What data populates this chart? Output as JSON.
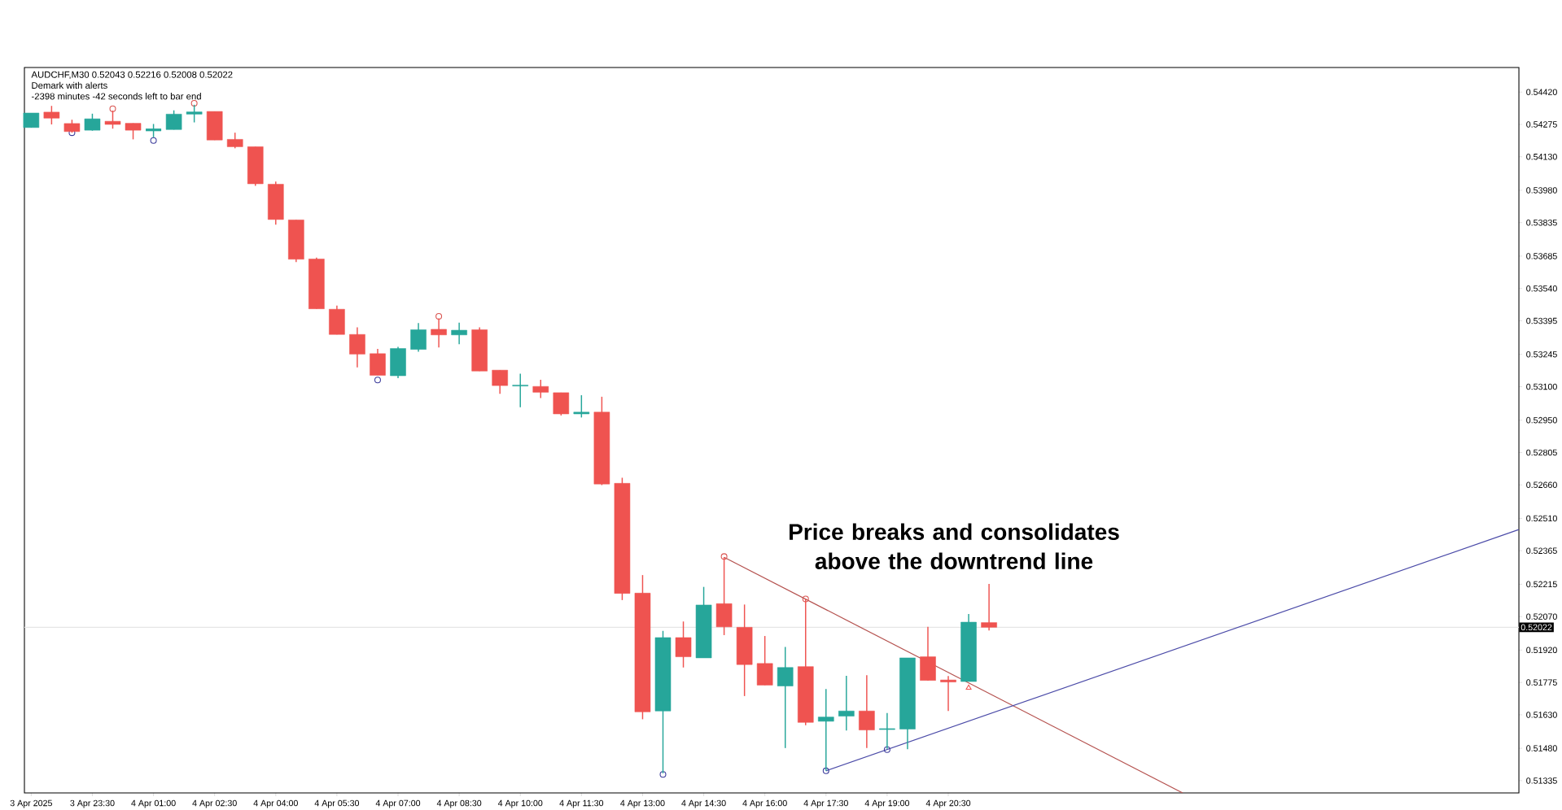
{
  "chart_data": {
    "type": "candlestick",
    "title": "AUDCHF,M30  0.52043 0.52216 0.52008 0.52022",
    "subtitle": "Demark with alerts",
    "annotations": [
      "-2398 minutes -42 seconds left to bar end",
      "Price breaks and consolidates above the downtrend line"
    ],
    "x": [
      "2025-04-03T22:00",
      "2025-04-03T22:30",
      "2025-04-03T23:00",
      "2025-04-03T23:30",
      "2025-04-04T00:00",
      "2025-04-04T00:30",
      "2025-04-04T01:00",
      "2025-04-04T01:30",
      "2025-04-04T02:00",
      "2025-04-04T02:30",
      "2025-04-04T03:00",
      "2025-04-04T03:30",
      "2025-04-04T04:00",
      "2025-04-04T04:30",
      "2025-04-04T05:00",
      "2025-04-04T05:30",
      "2025-04-04T06:00",
      "2025-04-04T06:30",
      "2025-04-04T07:00",
      "2025-04-04T07:30",
      "2025-04-04T08:00",
      "2025-04-04T08:30",
      "2025-04-04T09:00",
      "2025-04-04T09:30",
      "2025-04-04T10:00",
      "2025-04-04T10:30",
      "2025-04-04T11:00",
      "2025-04-04T11:30",
      "2025-04-04T12:00",
      "2025-04-04T12:30",
      "2025-04-04T13:00",
      "2025-04-04T13:30",
      "2025-04-04T14:00",
      "2025-04-04T14:30",
      "2025-04-04T15:00",
      "2025-04-04T15:30",
      "2025-04-04T16:00",
      "2025-04-04T16:30",
      "2025-04-04T17:00",
      "2025-04-04T17:30",
      "2025-04-04T18:00",
      "2025-04-04T18:30",
      "2025-04-04T19:00",
      "2025-04-04T19:30",
      "2025-04-04T20:00",
      "2025-04-04T20:30",
      "2025-04-04T21:00",
      "2025-04-04T21:30"
    ],
    "ohlc": [
      [
        0.54261,
        0.54326,
        0.54261,
        0.54326
      ],
      [
        0.5433,
        0.54358,
        0.54275,
        0.54303
      ],
      [
        0.54279,
        0.54296,
        0.54238,
        0.54243
      ],
      [
        0.54249,
        0.54323,
        0.54247,
        0.543
      ],
      [
        0.54289,
        0.54337,
        0.54256,
        0.54275
      ],
      [
        0.5428,
        0.5428,
        0.54208,
        0.54249
      ],
      [
        0.54249,
        0.54277,
        0.54217,
        0.54252
      ],
      [
        0.54252,
        0.54338,
        0.54252,
        0.54321
      ],
      [
        0.54321,
        0.54363,
        0.54284,
        0.54331
      ],
      [
        0.54333,
        0.54333,
        0.54205,
        0.54205
      ],
      [
        0.54208,
        0.54238,
        0.54168,
        0.54175
      ],
      [
        0.54175,
        0.54175,
        0.54,
        0.54009
      ],
      [
        0.54007,
        0.54019,
        0.53826,
        0.53849
      ],
      [
        0.53847,
        0.53847,
        0.53658,
        0.53671
      ],
      [
        0.53672,
        0.53678,
        0.53449,
        0.53449
      ],
      [
        0.53447,
        0.53463,
        0.53334,
        0.53334
      ],
      [
        0.53334,
        0.53366,
        0.53186,
        0.53246
      ],
      [
        0.53248,
        0.53269,
        0.53151,
        0.53151
      ],
      [
        0.53149,
        0.53278,
        0.53138,
        0.53271
      ],
      [
        0.53267,
        0.53385,
        0.53257,
        0.53355
      ],
      [
        0.53357,
        0.53406,
        0.53276,
        0.53332
      ],
      [
        0.53332,
        0.53387,
        0.5329,
        0.53353
      ],
      [
        0.53355,
        0.53366,
        0.5317,
        0.5317
      ],
      [
        0.53174,
        0.53174,
        0.53068,
        0.53105
      ],
      [
        0.53103,
        0.53158,
        0.53008,
        0.53107
      ],
      [
        0.53101,
        0.53131,
        0.53049,
        0.53075
      ],
      [
        0.53073,
        0.53073,
        0.52971,
        0.52978
      ],
      [
        0.52978,
        0.53062,
        0.52962,
        0.52986
      ],
      [
        0.52986,
        0.53055,
        0.52659,
        0.52664
      ],
      [
        0.52667,
        0.52692,
        0.52144,
        0.52174
      ],
      [
        0.52175,
        0.52256,
        0.5161,
        0.51643
      ],
      [
        0.51647,
        0.52006,
        0.51368,
        0.51976
      ],
      [
        0.51976,
        0.52048,
        0.51842,
        0.5189
      ],
      [
        0.51885,
        0.52203,
        0.51885,
        0.52122
      ],
      [
        0.52128,
        0.52336,
        0.51987,
        0.52024
      ],
      [
        0.52022,
        0.52124,
        0.51714,
        0.51855
      ],
      [
        0.5186,
        0.51983,
        0.51763,
        0.51763
      ],
      [
        0.51759,
        0.51934,
        0.51481,
        0.51842
      ],
      [
        0.51846,
        0.52149,
        0.51583,
        0.51596
      ],
      [
        0.51601,
        0.51745,
        0.51379,
        0.5162
      ],
      [
        0.51624,
        0.51805,
        0.5156,
        0.51647
      ],
      [
        0.51647,
        0.51807,
        0.51481,
        0.51562
      ],
      [
        0.51564,
        0.51638,
        0.51478,
        0.51568
      ],
      [
        0.51566,
        0.51885,
        0.51476,
        0.51885
      ],
      [
        0.5189,
        0.52024,
        0.51784,
        0.51784
      ],
      [
        0.51786,
        0.51804,
        0.51647,
        0.51777
      ],
      [
        0.51779,
        0.52082,
        0.51779,
        0.52045
      ],
      [
        0.52043,
        0.52216,
        0.52008,
        0.52022
      ]
    ],
    "colors": [
      "#26a69a",
      "#ef5350",
      "#ef5350",
      "#26a69a",
      "#ef5350",
      "#ef5350",
      "#26a69a",
      "#26a69a",
      "#26a69a",
      "#ef5350",
      "#ef5350",
      "#ef5350",
      "#ef5350",
      "#ef5350",
      "#ef5350",
      "#ef5350",
      "#ef5350",
      "#ef5350",
      "#26a69a",
      "#26a69a",
      "#ef5350",
      "#26a69a",
      "#ef5350",
      "#ef5350",
      "#26a69a",
      "#ef5350",
      "#ef5350",
      "#26a69a",
      "#ef5350",
      "#ef5350",
      "#ef5350",
      "#26a69a",
      "#ef5350",
      "#26a69a",
      "#ef5350",
      "#ef5350",
      "#ef5350",
      "#26a69a",
      "#ef5350",
      "#26a69a",
      "#26a69a",
      "#ef5350",
      "#26a69a",
      "#26a69a",
      "#ef5350",
      "#ef5350",
      "#26a69a",
      "#ef5350"
    ],
    "series": [
      {
        "type": "line",
        "color": "#b5524f",
        "marker": "none",
        "x": [
          "2025-04-04T15:00",
          "2025-04-05T02:15"
        ],
        "values": [
          0.52336,
          0.5128
        ]
      },
      {
        "type": "line",
        "color": "#4b4ba8",
        "marker": "none",
        "x": [
          "2025-04-04T17:30",
          "2025-04-05T10:30"
        ],
        "values": [
          0.51379,
          0.5246
        ]
      },
      {
        "type": "scatter",
        "color": "#d9534f",
        "marker": "circle",
        "x": [
          "2025-04-04T00:00",
          "2025-04-04T02:00",
          "2025-04-04T08:00",
          "2025-04-04T15:00",
          "2025-04-04T17:00"
        ],
        "values": [
          0.54345,
          0.5437,
          0.53415,
          0.52339,
          0.52149
        ]
      },
      {
        "type": "scatter",
        "color": "#3b3b9b",
        "marker": "circle",
        "x": [
          "2025-04-03T23:00",
          "2025-04-04T01:00",
          "2025-04-04T06:30",
          "2025-04-04T13:30",
          "2025-04-04T17:30",
          "2025-04-04T19:00"
        ],
        "values": [
          0.54238,
          0.54203,
          0.5313,
          0.51363,
          0.51379,
          0.51474
        ]
      },
      {
        "type": "scatter",
        "color": "#ef5350",
        "marker": "triangle",
        "x": [
          "2025-04-04T21:00"
        ],
        "values": [
          0.51751
        ]
      }
    ],
    "ref_lines": [
      {
        "axis": "y",
        "value": 0.52022,
        "label": "0.52022",
        "color": "#e6e6e6"
      }
    ],
    "xlim": [
      "2025-04-03T21:50",
      "2025-04-05T10:30"
    ],
    "ylim": [
      0.5128,
      0.5453
    ],
    "xticks": [
      {
        "value": "2025-04-03T22:00",
        "label": "3 Apr 2025"
      },
      {
        "value": "2025-04-03T23:30",
        "label": "3 Apr 23:30"
      },
      {
        "value": "2025-04-04T01:00",
        "label": "4 Apr 01:00"
      },
      {
        "value": "2025-04-04T02:30",
        "label": "4 Apr 02:30"
      },
      {
        "value": "2025-04-04T04:00",
        "label": "4 Apr 04:00"
      },
      {
        "value": "2025-04-04T05:30",
        "label": "4 Apr 05:30"
      },
      {
        "value": "2025-04-04T07:00",
        "label": "4 Apr 07:00"
      },
      {
        "value": "2025-04-04T08:30",
        "label": "4 Apr 08:30"
      },
      {
        "value": "2025-04-04T10:00",
        "label": "4 Apr 10:00"
      },
      {
        "value": "2025-04-04T11:30",
        "label": "4 Apr 11:30"
      },
      {
        "value": "2025-04-04T13:00",
        "label": "4 Apr 13:00"
      },
      {
        "value": "2025-04-04T14:30",
        "label": "4 Apr 14:30"
      },
      {
        "value": "2025-04-04T16:00",
        "label": "4 Apr 16:00"
      },
      {
        "value": "2025-04-04T17:30",
        "label": "4 Apr 17:30"
      },
      {
        "value": "2025-04-04T19:00",
        "label": "4 Apr 19:00"
      },
      {
        "value": "2025-04-04T20:30",
        "label": "4 Apr 20:30"
      }
    ],
    "yticks": [
      {
        "value": 0.5442,
        "label": "0.54420"
      },
      {
        "value": 0.54275,
        "label": "0.54275"
      },
      {
        "value": 0.5413,
        "label": "0.54130"
      },
      {
        "value": 0.5398,
        "label": "0.53980"
      },
      {
        "value": 0.53835,
        "label": "0.53835"
      },
      {
        "value": 0.53685,
        "label": "0.53685"
      },
      {
        "value": 0.5354,
        "label": "0.53540"
      },
      {
        "value": 0.53395,
        "label": "0.53395"
      },
      {
        "value": 0.53245,
        "label": "0.53245"
      },
      {
        "value": 0.531,
        "label": "0.53100"
      },
      {
        "value": 0.5295,
        "label": "0.52950"
      },
      {
        "value": 0.52805,
        "label": "0.52805"
      },
      {
        "value": 0.5266,
        "label": "0.52660"
      },
      {
        "value": 0.5251,
        "label": "0.52510"
      },
      {
        "value": 0.52365,
        "label": "0.52365"
      },
      {
        "value": 0.52215,
        "label": "0.52215"
      },
      {
        "value": 0.5207,
        "label": "0.52070"
      },
      {
        "value": 0.5192,
        "label": "0.51920"
      },
      {
        "value": 0.51775,
        "label": "0.51775"
      },
      {
        "value": 0.5163,
        "label": "0.51630"
      },
      {
        "value": 0.5148,
        "label": "0.51480"
      },
      {
        "value": 0.51335,
        "label": "0.51335"
      }
    ]
  }
}
